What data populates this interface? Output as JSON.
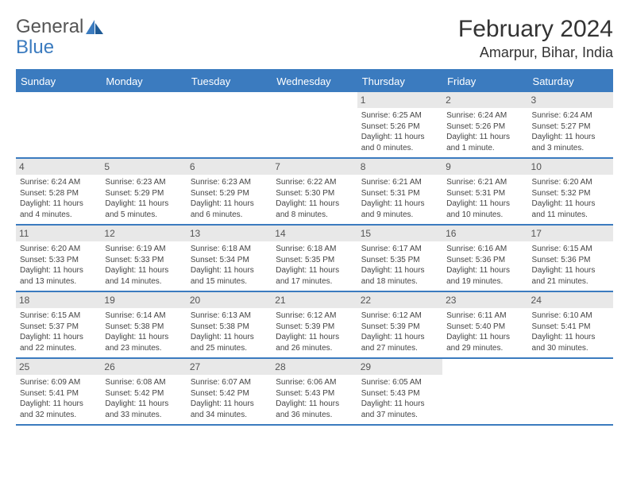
{
  "brand": {
    "general": "General",
    "blue": "Blue"
  },
  "title": "February 2024",
  "location": "Amarpur, Bihar, India",
  "day_headers": [
    "Sunday",
    "Monday",
    "Tuesday",
    "Wednesday",
    "Thursday",
    "Friday",
    "Saturday"
  ],
  "colors": {
    "header_bg": "#3b7bbf",
    "daynum_bg": "#e8e8e8",
    "row_border": "#3b7bbf",
    "text": "#444444",
    "title": "#333333"
  },
  "weeks": [
    [
      {
        "day": "",
        "sunrise": "",
        "sunset": "",
        "daylight1": "",
        "daylight2": ""
      },
      {
        "day": "",
        "sunrise": "",
        "sunset": "",
        "daylight1": "",
        "daylight2": ""
      },
      {
        "day": "",
        "sunrise": "",
        "sunset": "",
        "daylight1": "",
        "daylight2": ""
      },
      {
        "day": "",
        "sunrise": "",
        "sunset": "",
        "daylight1": "",
        "daylight2": ""
      },
      {
        "day": "1",
        "sunrise": "Sunrise: 6:25 AM",
        "sunset": "Sunset: 5:26 PM",
        "daylight1": "Daylight: 11 hours",
        "daylight2": "and 0 minutes."
      },
      {
        "day": "2",
        "sunrise": "Sunrise: 6:24 AM",
        "sunset": "Sunset: 5:26 PM",
        "daylight1": "Daylight: 11 hours",
        "daylight2": "and 1 minute."
      },
      {
        "day": "3",
        "sunrise": "Sunrise: 6:24 AM",
        "sunset": "Sunset: 5:27 PM",
        "daylight1": "Daylight: 11 hours",
        "daylight2": "and 3 minutes."
      }
    ],
    [
      {
        "day": "4",
        "sunrise": "Sunrise: 6:24 AM",
        "sunset": "Sunset: 5:28 PM",
        "daylight1": "Daylight: 11 hours",
        "daylight2": "and 4 minutes."
      },
      {
        "day": "5",
        "sunrise": "Sunrise: 6:23 AM",
        "sunset": "Sunset: 5:29 PM",
        "daylight1": "Daylight: 11 hours",
        "daylight2": "and 5 minutes."
      },
      {
        "day": "6",
        "sunrise": "Sunrise: 6:23 AM",
        "sunset": "Sunset: 5:29 PM",
        "daylight1": "Daylight: 11 hours",
        "daylight2": "and 6 minutes."
      },
      {
        "day": "7",
        "sunrise": "Sunrise: 6:22 AM",
        "sunset": "Sunset: 5:30 PM",
        "daylight1": "Daylight: 11 hours",
        "daylight2": "and 8 minutes."
      },
      {
        "day": "8",
        "sunrise": "Sunrise: 6:21 AM",
        "sunset": "Sunset: 5:31 PM",
        "daylight1": "Daylight: 11 hours",
        "daylight2": "and 9 minutes."
      },
      {
        "day": "9",
        "sunrise": "Sunrise: 6:21 AM",
        "sunset": "Sunset: 5:31 PM",
        "daylight1": "Daylight: 11 hours",
        "daylight2": "and 10 minutes."
      },
      {
        "day": "10",
        "sunrise": "Sunrise: 6:20 AM",
        "sunset": "Sunset: 5:32 PM",
        "daylight1": "Daylight: 11 hours",
        "daylight2": "and 11 minutes."
      }
    ],
    [
      {
        "day": "11",
        "sunrise": "Sunrise: 6:20 AM",
        "sunset": "Sunset: 5:33 PM",
        "daylight1": "Daylight: 11 hours",
        "daylight2": "and 13 minutes."
      },
      {
        "day": "12",
        "sunrise": "Sunrise: 6:19 AM",
        "sunset": "Sunset: 5:33 PM",
        "daylight1": "Daylight: 11 hours",
        "daylight2": "and 14 minutes."
      },
      {
        "day": "13",
        "sunrise": "Sunrise: 6:18 AM",
        "sunset": "Sunset: 5:34 PM",
        "daylight1": "Daylight: 11 hours",
        "daylight2": "and 15 minutes."
      },
      {
        "day": "14",
        "sunrise": "Sunrise: 6:18 AM",
        "sunset": "Sunset: 5:35 PM",
        "daylight1": "Daylight: 11 hours",
        "daylight2": "and 17 minutes."
      },
      {
        "day": "15",
        "sunrise": "Sunrise: 6:17 AM",
        "sunset": "Sunset: 5:35 PM",
        "daylight1": "Daylight: 11 hours",
        "daylight2": "and 18 minutes."
      },
      {
        "day": "16",
        "sunrise": "Sunrise: 6:16 AM",
        "sunset": "Sunset: 5:36 PM",
        "daylight1": "Daylight: 11 hours",
        "daylight2": "and 19 minutes."
      },
      {
        "day": "17",
        "sunrise": "Sunrise: 6:15 AM",
        "sunset": "Sunset: 5:36 PM",
        "daylight1": "Daylight: 11 hours",
        "daylight2": "and 21 minutes."
      }
    ],
    [
      {
        "day": "18",
        "sunrise": "Sunrise: 6:15 AM",
        "sunset": "Sunset: 5:37 PM",
        "daylight1": "Daylight: 11 hours",
        "daylight2": "and 22 minutes."
      },
      {
        "day": "19",
        "sunrise": "Sunrise: 6:14 AM",
        "sunset": "Sunset: 5:38 PM",
        "daylight1": "Daylight: 11 hours",
        "daylight2": "and 23 minutes."
      },
      {
        "day": "20",
        "sunrise": "Sunrise: 6:13 AM",
        "sunset": "Sunset: 5:38 PM",
        "daylight1": "Daylight: 11 hours",
        "daylight2": "and 25 minutes."
      },
      {
        "day": "21",
        "sunrise": "Sunrise: 6:12 AM",
        "sunset": "Sunset: 5:39 PM",
        "daylight1": "Daylight: 11 hours",
        "daylight2": "and 26 minutes."
      },
      {
        "day": "22",
        "sunrise": "Sunrise: 6:12 AM",
        "sunset": "Sunset: 5:39 PM",
        "daylight1": "Daylight: 11 hours",
        "daylight2": "and 27 minutes."
      },
      {
        "day": "23",
        "sunrise": "Sunrise: 6:11 AM",
        "sunset": "Sunset: 5:40 PM",
        "daylight1": "Daylight: 11 hours",
        "daylight2": "and 29 minutes."
      },
      {
        "day": "24",
        "sunrise": "Sunrise: 6:10 AM",
        "sunset": "Sunset: 5:41 PM",
        "daylight1": "Daylight: 11 hours",
        "daylight2": "and 30 minutes."
      }
    ],
    [
      {
        "day": "25",
        "sunrise": "Sunrise: 6:09 AM",
        "sunset": "Sunset: 5:41 PM",
        "daylight1": "Daylight: 11 hours",
        "daylight2": "and 32 minutes."
      },
      {
        "day": "26",
        "sunrise": "Sunrise: 6:08 AM",
        "sunset": "Sunset: 5:42 PM",
        "daylight1": "Daylight: 11 hours",
        "daylight2": "and 33 minutes."
      },
      {
        "day": "27",
        "sunrise": "Sunrise: 6:07 AM",
        "sunset": "Sunset: 5:42 PM",
        "daylight1": "Daylight: 11 hours",
        "daylight2": "and 34 minutes."
      },
      {
        "day": "28",
        "sunrise": "Sunrise: 6:06 AM",
        "sunset": "Sunset: 5:43 PM",
        "daylight1": "Daylight: 11 hours",
        "daylight2": "and 36 minutes."
      },
      {
        "day": "29",
        "sunrise": "Sunrise: 6:05 AM",
        "sunset": "Sunset: 5:43 PM",
        "daylight1": "Daylight: 11 hours",
        "daylight2": "and 37 minutes."
      },
      {
        "day": "",
        "sunrise": "",
        "sunset": "",
        "daylight1": "",
        "daylight2": ""
      },
      {
        "day": "",
        "sunrise": "",
        "sunset": "",
        "daylight1": "",
        "daylight2": ""
      }
    ]
  ]
}
